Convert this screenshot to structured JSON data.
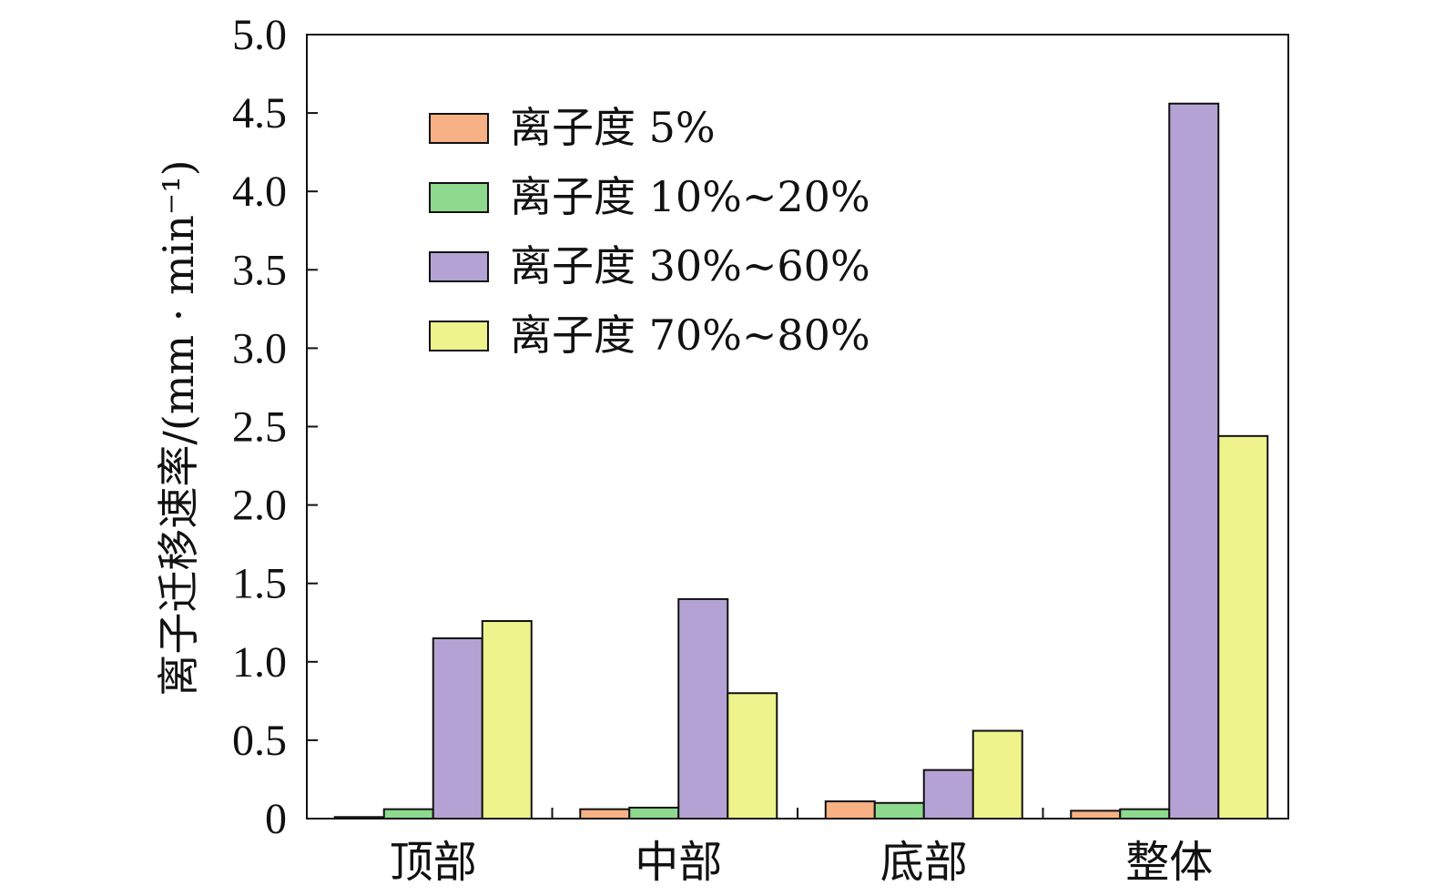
{
  "chart_data": {
    "type": "bar",
    "categories": [
      "顶部",
      "中部",
      "底部",
      "整体"
    ],
    "series": [
      {
        "name": "离子度 5%",
        "color": "#F7B184",
        "values": [
          0.01,
          0.06,
          0.11,
          0.05
        ]
      },
      {
        "name": "离子度 10%~20%",
        "color": "#8DD98E",
        "values": [
          0.06,
          0.07,
          0.1,
          0.06
        ]
      },
      {
        "name": "离子度 30%~60%",
        "color": "#B5A2D4",
        "values": [
          1.15,
          1.4,
          0.31,
          4.56
        ]
      },
      {
        "name": "离子度 70%~80%",
        "color": "#EEF38C",
        "values": [
          1.26,
          0.8,
          0.56,
          2.44
        ]
      }
    ],
    "ylabel": "离子迁移速率/(mm · min⁻¹)",
    "xlabel": "",
    "ylim": [
      0,
      5.0
    ],
    "yticks": [
      "0",
      "0.5",
      "1.0",
      "1.5",
      "2.0",
      "2.5",
      "3.0",
      "3.5",
      "4.0",
      "4.5",
      "5.0"
    ],
    "ytick_values": [
      0,
      0.5,
      1.0,
      1.5,
      2.0,
      2.5,
      3.0,
      3.5,
      4.0,
      4.5,
      5.0
    ],
    "grid": false,
    "legend_position": "top-left"
  }
}
